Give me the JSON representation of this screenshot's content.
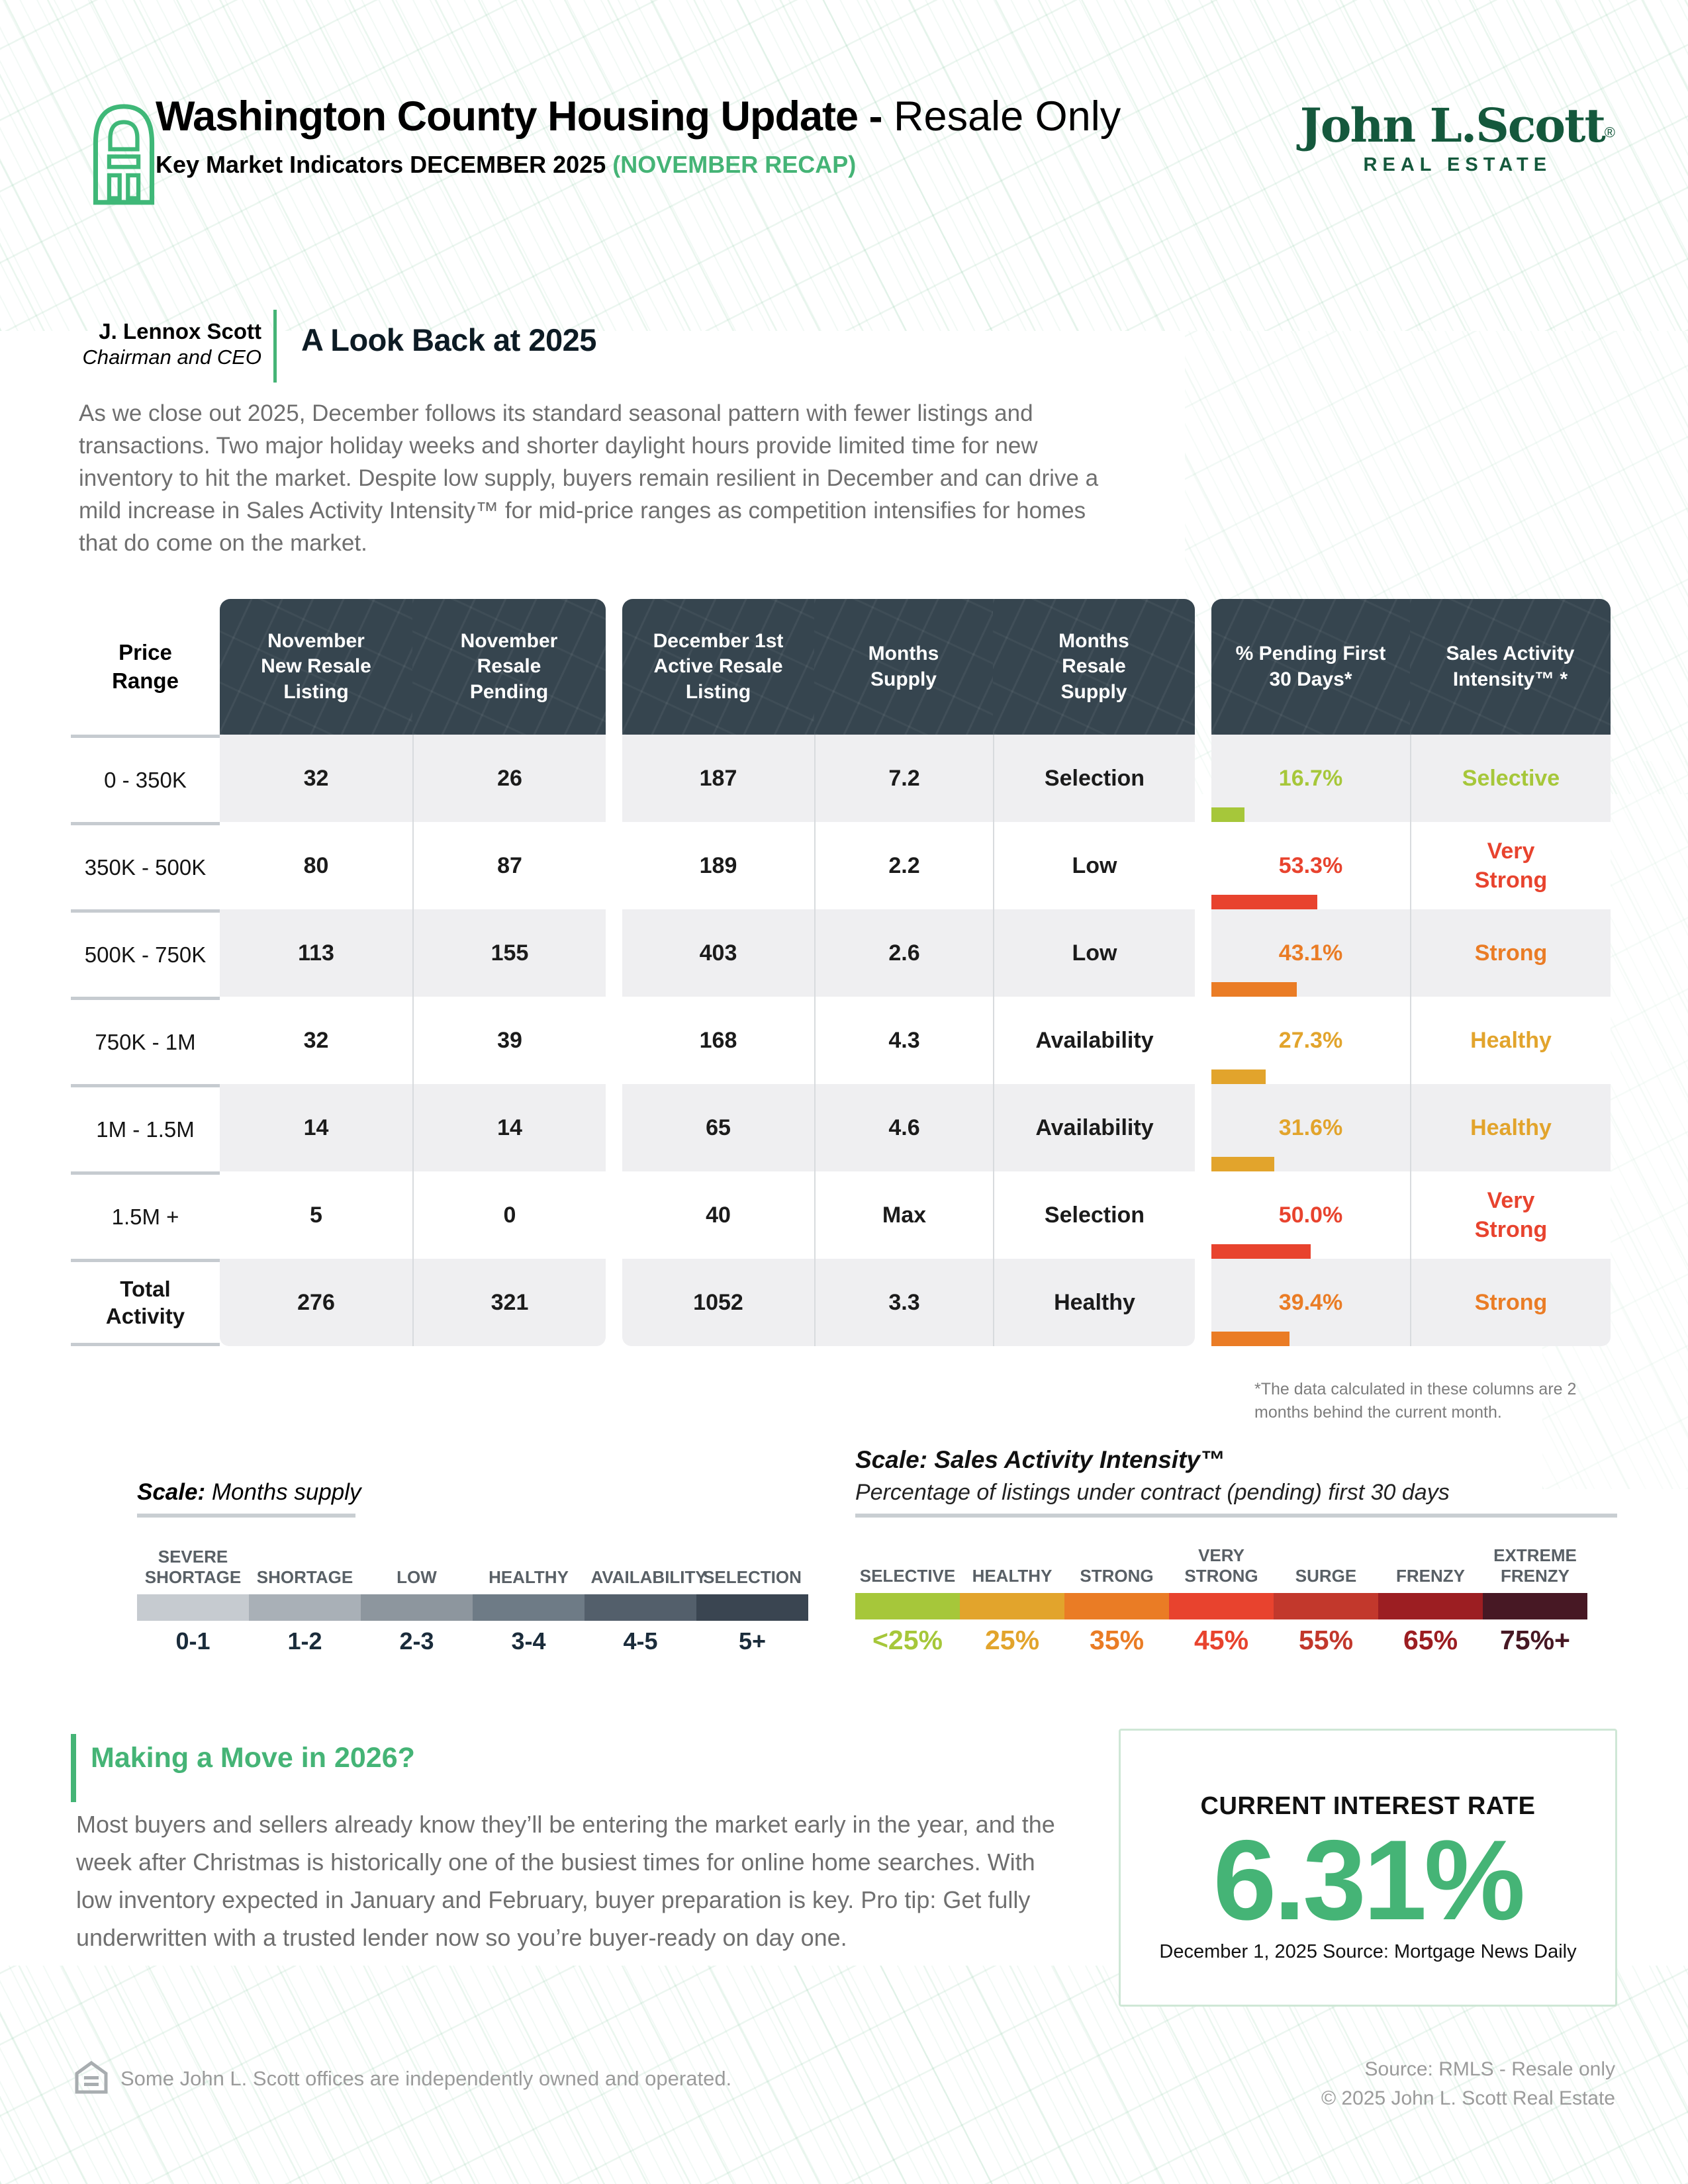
{
  "accent_green": "#45b476",
  "logo_green": "#14583c",
  "header_navy": "#36454f",
  "header": {
    "title_bold": "Washington County Housing Update -",
    "title_light": " Resale Only",
    "subtitle_black": "Key Market Indicators DECEMBER 2025 ",
    "subtitle_green": "(NOVEMBER RECAP)",
    "logo_name": "John L.Scott",
    "logo_reg": "®",
    "logo_sub": "REAL ESTATE"
  },
  "lookback": {
    "author_name": "J. Lennox Scott",
    "author_title": "Chairman and CEO",
    "heading": "A Look Back at 2025",
    "body": "As we close out 2025, December follows its standard seasonal pattern with fewer listings and transactions. Two major holiday weeks and shorter daylight hours provide limited time for new inventory to hit the market. Despite low supply, buyers remain resilient in December and can drive a mild increase in Sales Activity Intensity™ for mid-price ranges as competition intensifies for homes that do come on the market."
  },
  "table": {
    "headers": {
      "price": "Price Range",
      "c1": "November New Resale Listing",
      "c2": "November Resale Pending",
      "c3": "December 1st Active Resale Listing",
      "c4": "Months Supply",
      "c5": "Months Resale Supply",
      "c6": "% Pending First 30 Days*",
      "c7": "Sales Activity Intensity™ *"
    },
    "rows": [
      {
        "price": "0 - 350K",
        "new_listing": "32",
        "pending": "26",
        "active": "187",
        "supply": "7.2",
        "resale": "Selection",
        "pct": "16.7%",
        "pct_value": 16.7,
        "intensity": "Selective",
        "color": "#a6c73a"
      },
      {
        "price": "350K - 500K",
        "new_listing": "80",
        "pending": "87",
        "active": "189",
        "supply": "2.2",
        "resale": "Low",
        "pct": "53.3%",
        "pct_value": 53.3,
        "intensity": "Very Strong",
        "color": "#e8432e"
      },
      {
        "price": "500K - 750K",
        "new_listing": "113",
        "pending": "155",
        "active": "403",
        "supply": "2.6",
        "resale": "Low",
        "pct": "43.1%",
        "pct_value": 43.1,
        "intensity": "Strong",
        "color": "#ea7c25"
      },
      {
        "price": "750K - 1M",
        "new_listing": "32",
        "pending": "39",
        "active": "168",
        "supply": "4.3",
        "resale": "Availability",
        "pct": "27.3%",
        "pct_value": 27.3,
        "intensity": "Healthy",
        "color": "#e2a42c"
      },
      {
        "price": "1M - 1.5M",
        "new_listing": "14",
        "pending": "14",
        "active": "65",
        "supply": "4.6",
        "resale": "Availability",
        "pct": "31.6%",
        "pct_value": 31.6,
        "intensity": "Healthy",
        "color": "#e2a42c"
      },
      {
        "price": "1.5M +",
        "new_listing": "5",
        "pending": "0",
        "active": "40",
        "supply": "Max",
        "resale": "Selection",
        "pct": "50.0%",
        "pct_value": 50.0,
        "intensity": "Very Strong",
        "color": "#e8432e"
      },
      {
        "price": "Total Activity",
        "new_listing": "276",
        "pending": "321",
        "active": "1052",
        "supply": "3.3",
        "resale": "Healthy",
        "pct": "39.4%",
        "pct_value": 39.4,
        "intensity": "Strong",
        "color": "#ea7c25"
      }
    ],
    "footnote": "*The data calculated in these columns are 2 months behind the current month."
  },
  "scales": {
    "months": {
      "title_bold": "Scale:",
      "title_rest": " Months supply",
      "labels": [
        "SEVERE SHORTAGE",
        "SHORTAGE",
        "LOW",
        "HEALTHY",
        "AVAILABILITY",
        "SELECTION"
      ],
      "ranges": [
        "0-1",
        "1-2",
        "2-3",
        "3-4",
        "4-5",
        "5+"
      ],
      "colors": [
        "#c6cbd0",
        "#a9b0b7",
        "#8d969e",
        "#6e7b86",
        "#535f6b",
        "#3a4551"
      ]
    },
    "intensity": {
      "title": "Scale: Sales Activity Intensity™",
      "subtitle": "Percentage of listings under contract (pending) first 30 days",
      "labels": [
        "SELECTIVE",
        "HEALTHY",
        "STRONG",
        "VERY STRONG",
        "SURGE",
        "FRENZY",
        "EXTREME FRENZY"
      ],
      "values": [
        "<25%",
        "25%",
        "35%",
        "45%",
        "55%",
        "65%",
        "75%+"
      ],
      "colors": [
        "#a6c73a",
        "#e2a42c",
        "#ea7c25",
        "#e8432e",
        "#c2382c",
        "#9c1e22",
        "#471824"
      ]
    }
  },
  "move2026": {
    "heading": "Making a Move in 2026?",
    "body": "Most buyers and sellers already know they’ll be entering the market early in the year, and the week after Christmas is historically one of the busiest times for online home searches. With low inventory expected in January and February, buyer preparation is key. Pro tip: Get fully underwritten with a trusted lender now so you’re buyer-ready on day one."
  },
  "interest": {
    "title": "CURRENT INTEREST RATE",
    "rate": "6.31%",
    "caption": "December 1, 2025 Source: Mortgage News Daily"
  },
  "footer": {
    "left": "Some John L. Scott offices are independently owned and operated.",
    "right_line1": "Source: RMLS - Resale only",
    "right_line2": "© 2025 John L. Scott Real Estate"
  }
}
